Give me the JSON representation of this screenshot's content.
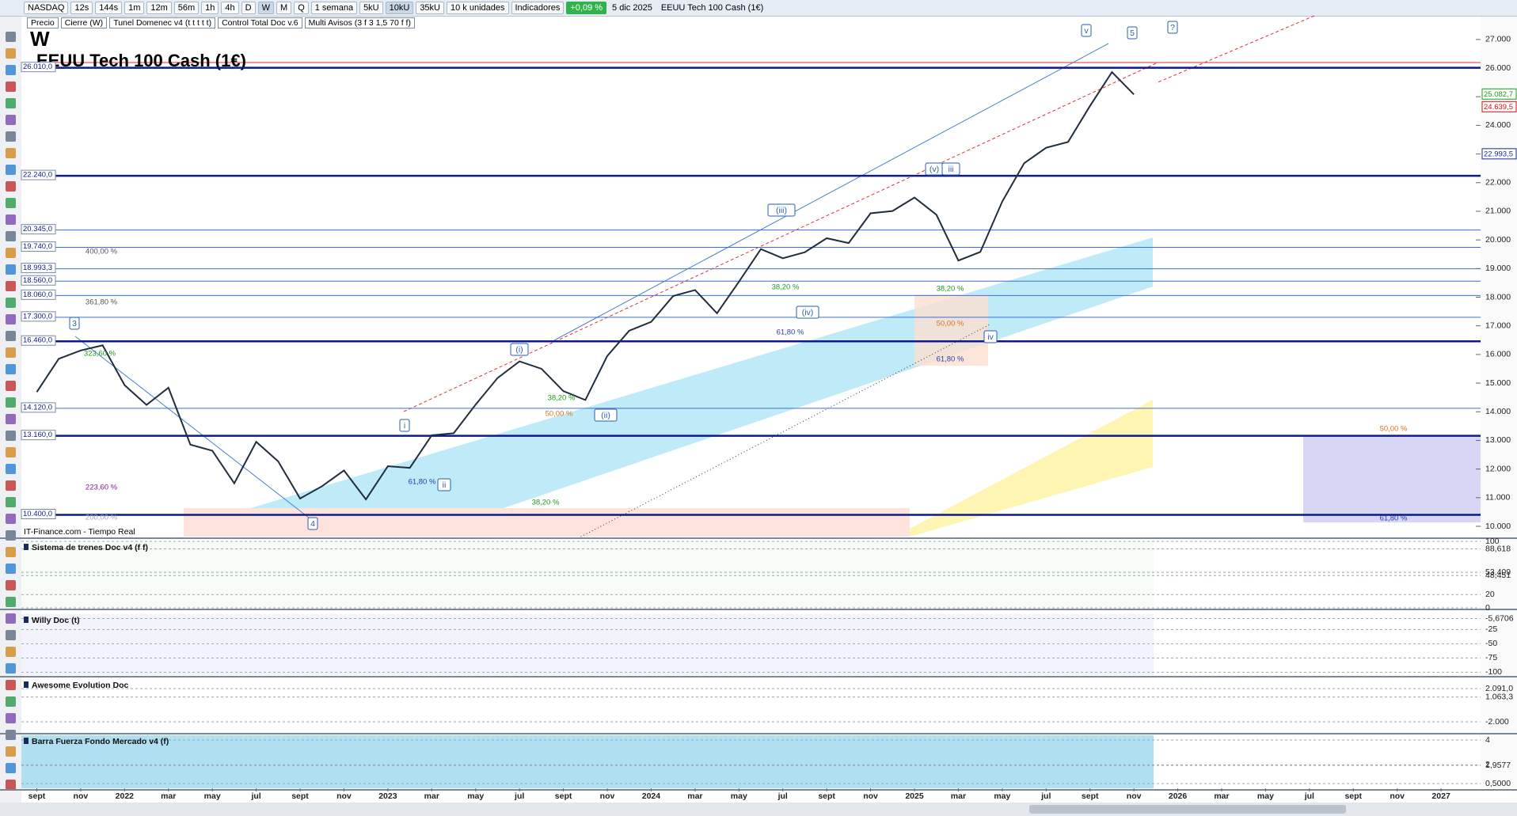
{
  "toolbar": {
    "symbol": "NASDAQ",
    "timeframes": [
      "12s",
      "144s",
      "1m",
      "12m",
      "56m",
      "1h",
      "4h",
      "D",
      "W",
      "M",
      "Q"
    ],
    "period": "1 semana",
    "units": [
      "5kU",
      "10kU",
      "35kU"
    ],
    "unit_select": "10 k unidades",
    "indicators": "Indicadores",
    "change": "+0,09 %",
    "date": "5 dic 2025",
    "instrument": "EEUU Tech 100 Cash (1€)"
  },
  "legend": [
    "Precio",
    "Cierre (W)",
    "Tunel Domenec v4 (t t t t t)",
    "Control Total Doc v.6",
    "Multi Avisos (3 f 3 1,5 70 f f)"
  ],
  "chart_data": [
    {
      "type": "line",
      "timeframe": "W",
      "title": "EEUU Tech 100 Cash (1€)",
      "source": "IT-Finance.com - Tiempo Real",
      "xlim": [
        -0.45,
        65.8
      ],
      "xticks": [
        {
          "value": 0,
          "label": "sept"
        },
        {
          "value": 2,
          "label": "nov"
        },
        {
          "value": 4,
          "label": "2022"
        },
        {
          "value": 6,
          "label": "mar"
        },
        {
          "value": 8,
          "label": "may"
        },
        {
          "value": 10,
          "label": "jul"
        },
        {
          "value": 12,
          "label": "sept"
        },
        {
          "value": 14,
          "label": "nov"
        },
        {
          "value": 16,
          "label": "2023"
        },
        {
          "value": 18,
          "label": "mar"
        },
        {
          "value": 20,
          "label": "may"
        },
        {
          "value": 22,
          "label": "jul"
        },
        {
          "value": 24,
          "label": "sept"
        },
        {
          "value": 26,
          "label": "nov"
        },
        {
          "value": 28,
          "label": "2024"
        },
        {
          "value": 30,
          "label": "mar"
        },
        {
          "value": 32,
          "label": "may"
        },
        {
          "value": 34,
          "label": "jul"
        },
        {
          "value": 36,
          "label": "sept"
        },
        {
          "value": 38,
          "label": "nov"
        },
        {
          "value": 40,
          "label": "2025"
        },
        {
          "value": 42,
          "label": "mar"
        },
        {
          "value": 44,
          "label": "may"
        },
        {
          "value": 46,
          "label": "jul"
        },
        {
          "value": 48,
          "label": "sept"
        },
        {
          "value": 50,
          "label": "nov"
        },
        {
          "value": 52,
          "label": "2026"
        },
        {
          "value": 54,
          "label": "mar"
        },
        {
          "value": 56,
          "label": "may"
        },
        {
          "value": 58,
          "label": "jul"
        },
        {
          "value": 60,
          "label": "sept"
        },
        {
          "value": 62,
          "label": "nov"
        },
        {
          "value": 64,
          "label": "2027"
        }
      ],
      "x": [
        0,
        1,
        2,
        3,
        4,
        5,
        6,
        7,
        8,
        9,
        10,
        11,
        12,
        13,
        14,
        15,
        16,
        17,
        18,
        19,
        20,
        21,
        22,
        23,
        24,
        25,
        26,
        27,
        28,
        29,
        30,
        31,
        32,
        33,
        34,
        35,
        36,
        37,
        38,
        39,
        40,
        41,
        42,
        43,
        44,
        45,
        46,
        47,
        48,
        49,
        50
      ],
      "series": [
        {
          "color": "#1f2d3d",
          "values": [
            14690,
            15850,
            16140,
            16320,
            14930,
            14240,
            14840,
            12850,
            12640,
            11500,
            12950,
            12270,
            10970,
            11400,
            11950,
            10940,
            12100,
            12040,
            13180,
            13250,
            14250,
            15180,
            15760,
            15500,
            14720,
            14410,
            15950,
            16830,
            17140,
            18040,
            18250,
            17440,
            18540,
            19680,
            19360,
            19570,
            20060,
            19890,
            20930,
            21010,
            21480,
            20880,
            19280,
            19580,
            21340,
            22680,
            23220,
            23420,
            24680,
            25860,
            25080
          ]
        }
      ],
      "ylim": [
        9640,
        27770
      ],
      "yticks": [
        {
          "value": 27000,
          "label": "27.000"
        },
        {
          "value": 26000,
          "label": "26.000"
        },
        {
          "value": 25000,
          "label": "25.000"
        },
        {
          "value": 24000,
          "label": "24.000"
        },
        {
          "value": 23000,
          "label": "23.000"
        },
        {
          "value": 22000,
          "label": "22.000"
        },
        {
          "value": 21000,
          "label": "21.000"
        },
        {
          "value": 20000,
          "label": "20.000"
        },
        {
          "value": 19000,
          "label": "19.000"
        },
        {
          "value": 18000,
          "label": "18.000"
        },
        {
          "value": 17000,
          "label": "17.000"
        },
        {
          "value": 16000,
          "label": "16.000"
        },
        {
          "value": 15000,
          "label": "15.000"
        },
        {
          "value": 14000,
          "label": "14.000"
        },
        {
          "value": 13000,
          "label": "13.000"
        },
        {
          "value": 12000,
          "label": "12.000"
        },
        {
          "value": 11000,
          "label": "11.000"
        },
        {
          "value": 10000,
          "label": "10.000"
        }
      ],
      "levels": [
        {
          "value": 26010,
          "label": "26.010,0",
          "style": "thick"
        },
        {
          "value": 22240,
          "label": "22.240,0",
          "style": "thick"
        },
        {
          "value": 20345,
          "label": "20.345,0",
          "style": "thin"
        },
        {
          "value": 19740,
          "label": "19.740,0",
          "style": "thin"
        },
        {
          "value": 18993.3,
          "label": "18.993,3",
          "style": "thin"
        },
        {
          "value": 18560,
          "label": "18.560,0",
          "style": "thin"
        },
        {
          "value": 18060,
          "label": "18.060,0",
          "style": "thin"
        },
        {
          "value": 17300,
          "label": "17.300,0",
          "style": "thin"
        },
        {
          "value": 16460,
          "label": "16.460,0",
          "style": "thick"
        },
        {
          "value": 14120,
          "label": "14.120,0",
          "style": "thin"
        },
        {
          "value": 13160,
          "label": "13.160,0",
          "style": "thick"
        },
        {
          "value": 10400,
          "label": "10.400,0",
          "style": "thick"
        }
      ],
      "price_labels": [
        {
          "value": 25082.7,
          "label": "25.082,7",
          "color": "#1a9c1a"
        },
        {
          "value": 24639.5,
          "label": "24.639,5",
          "color": "#d01010"
        },
        {
          "value": 22993.5,
          "label": "22.993,5",
          "color": "#1a2a8a"
        }
      ],
      "annotations": [
        {
          "text": "v",
          "color": "#2a5db0"
        },
        {
          "text": "5",
          "color": "#2a5db0"
        },
        {
          "text": "?",
          "color": "#2a5db0"
        },
        {
          "text": "(v)",
          "color": "#2a5db0"
        },
        {
          "text": "iii",
          "color": "#2a5db0"
        },
        {
          "text": "(iii)",
          "color": "#2a5db0"
        },
        {
          "text": "(iv)",
          "color": "#2a5db0"
        },
        {
          "text": "iv",
          "color": "#2a5db0"
        },
        {
          "text": "(i)",
          "color": "#2a5db0"
        },
        {
          "text": "(ii)",
          "color": "#2a5db0"
        },
        {
          "text": "i",
          "color": "#2a5db0"
        },
        {
          "text": "ii",
          "color": "#2a5db0"
        },
        {
          "text": "3",
          "color": "#2a5db0"
        },
        {
          "text": "4",
          "color": "#2a5db0"
        },
        {
          "text": "400,00 %",
          "color": "#555555"
        },
        {
          "text": "361,80 %",
          "color": "#555555"
        },
        {
          "text": "323,60 %",
          "color": "#1a9c1a"
        },
        {
          "text": "223,60 %",
          "color": "#8a1a8a"
        },
        {
          "text": "200,00 %",
          "color": "#9aa8c8"
        },
        {
          "text": "38,20 %",
          "color": "#1a9c1a"
        },
        {
          "text": "50,00 %",
          "color": "#e07020"
        },
        {
          "text": "61,80 %",
          "color": "#2a3ab0"
        },
        {
          "text": "38,20 %",
          "color": "#1a9c1a"
        },
        {
          "text": "38,20 %",
          "color": "#1a9c1a"
        },
        {
          "text": "61,80 %",
          "color": "#2a3ab0"
        },
        {
          "text": "38,20 %",
          "color": "#1a9c1a"
        },
        {
          "text": "50,00 %",
          "color": "#e07020"
        },
        {
          "text": "61,80 %",
          "color": "#2a3ab0"
        },
        {
          "text": "50,00 %",
          "color": "#e07020"
        },
        {
          "text": "61,80 %",
          "color": "#2a3ab0"
        }
      ]
    },
    {
      "type": "indicator",
      "title": "Sistema de trenes Doc v4 (f f)",
      "ylim": [
        0,
        100
      ],
      "yticks": [
        100,
        {
          "value": 88.618,
          "label": "88,618"
        },
        {
          "value": 53.409,
          "label": "53,409"
        },
        {
          "value": 48.451,
          "label": "48,451"
        },
        20,
        0
      ]
    },
    {
      "type": "indicator",
      "title": "Willy Doc (t)",
      "ylim": [
        -105,
        2
      ],
      "yticks": [
        {
          "value": -5.6706,
          "label": "-5,6706"
        },
        -25,
        -50,
        -75,
        -100
      ]
    },
    {
      "type": "indicator",
      "title": "Awesome Evolution Doc",
      "ylim": [
        -3260,
        3260
      ],
      "yticks": [
        {
          "value": 2091,
          "label": "2.091,0"
        },
        {
          "value": 1063.3,
          "label": "1.063,3"
        },
        {
          "value": -2000,
          "label": "-2.000"
        }
      ]
    },
    {
      "type": "indicator",
      "title": "Barra Fuerza Fondo Mercado v4 (f)",
      "ylim": [
        0.12,
        4.38
      ],
      "yticks": [
        4,
        2,
        {
          "value": 1.9577,
          "label": "1,9577"
        },
        {
          "value": 0.5,
          "label": "0,5000"
        }
      ]
    }
  ]
}
